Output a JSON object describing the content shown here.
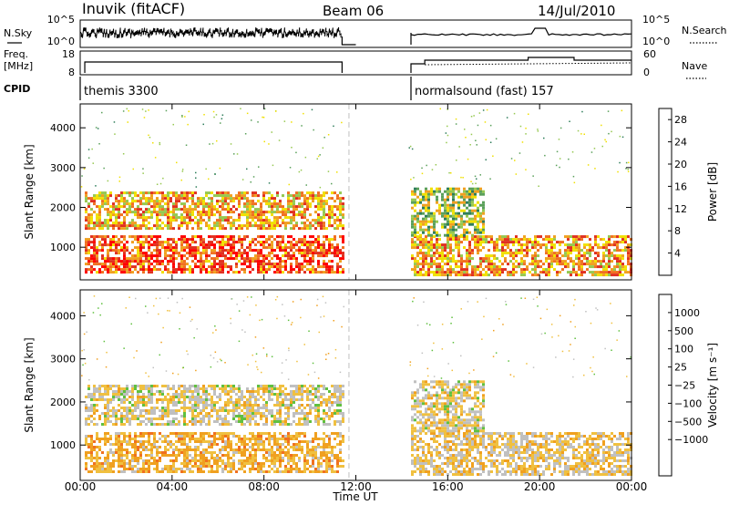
{
  "header": {
    "station": "Inuvik (fitACF)",
    "beam": "Beam 06",
    "date": "14/Jul/2010"
  },
  "strips": {
    "nsky_label": "N.Sky",
    "nsearch_label": "N.Search",
    "nsky_ticks": [
      "10^5",
      "10^0"
    ],
    "nsearch_ticks": [
      "10^5",
      "10^0"
    ],
    "freq_label_1": "Freq.",
    "freq_label_2": "[MHz]",
    "freq_ticks": [
      "18",
      "8"
    ],
    "nave_label": "Nave",
    "nave_ticks": [
      "60",
      "0"
    ],
    "cpid_label": "CPID",
    "cpid_segments": [
      {
        "label": "themis 3300",
        "start_hour": 0.0,
        "end_hour": 11.4
      },
      {
        "label": "normalsound (fast) 157",
        "start_hour": 14.4,
        "end_hour": 24.0
      }
    ]
  },
  "time_axis": {
    "label": "Time UT",
    "ticks": [
      "00:00",
      "04:00",
      "08:00",
      "12:00",
      "16:00",
      "20:00",
      "00:00"
    ],
    "tick_hours": [
      0,
      4,
      8,
      12,
      16,
      20,
      24
    ],
    "range_hours": [
      0,
      24
    ]
  },
  "chart_data": [
    {
      "type": "heatmap",
      "parameter": "Power",
      "ylabel": "Slant Range [km]",
      "yticks": [
        "1000",
        "2000",
        "3000",
        "4000"
      ],
      "ytick_values": [
        1000,
        2000,
        3000,
        4000
      ],
      "ylim": [
        180,
        4600
      ],
      "colorbar_label": "Power [dB]",
      "colorbar_ticks": [
        "4",
        "8",
        "12",
        "16",
        "20",
        "24",
        "28"
      ],
      "colorbar_tick_values": [
        4,
        8,
        12,
        16,
        20,
        24,
        28
      ],
      "colorbar_range": [
        0,
        30
      ],
      "colors": [
        "#1010e0",
        "#2050b0",
        "#2e7d5a",
        "#5aa05a",
        "#96c850",
        "#f0e000",
        "#f0a020",
        "#f07020",
        "#e03020",
        "#ff0000"
      ],
      "echo_bands": [
        {
          "start_hour": 0.2,
          "end_hour": 11.4,
          "range_km": [
            1500,
            2400
          ],
          "level": 19
        },
        {
          "start_hour": 0.2,
          "end_hour": 11.4,
          "range_km": [
            400,
            1300
          ],
          "level": 24
        },
        {
          "start_hour": 14.4,
          "end_hour": 24.0,
          "range_km": [
            300,
            1300
          ],
          "level": 20
        },
        {
          "start_hour": 14.4,
          "end_hour": 17.5,
          "range_km": [
            1300,
            2500
          ],
          "level": 14
        }
      ]
    },
    {
      "type": "heatmap",
      "parameter": "Velocity",
      "ylabel": "Slant Range [km]",
      "yticks": [
        "1000",
        "2000",
        "3000",
        "4000"
      ],
      "ytick_values": [
        1000,
        2000,
        3000,
        4000
      ],
      "ylim": [
        180,
        4600
      ],
      "colorbar_label": "Velocity [m s⁻¹]",
      "colorbar_ticks": [
        "1000",
        "500",
        "100",
        "25",
        "−25",
        "−100",
        "−500",
        "−1000"
      ],
      "colorbar_range": [
        -1000,
        1000
      ],
      "colors": [
        "#ff0000",
        "#e03020",
        "#f07020",
        "#f0a020",
        "#f0c040",
        "#c0c0c0",
        "#60c040",
        "#2e8b57",
        "#2a5aa0",
        "#1010c0"
      ],
      "echo_bands": [
        {
          "start_hour": 0.2,
          "end_hour": 11.4,
          "range_km": [
            1500,
            2400
          ],
          "level": 0
        },
        {
          "start_hour": 0.2,
          "end_hour": 11.4,
          "range_km": [
            400,
            1300
          ],
          "level": -200
        },
        {
          "start_hour": 14.4,
          "end_hour": 24.0,
          "range_km": [
            300,
            1300
          ],
          "level": -60
        },
        {
          "start_hour": 14.4,
          "end_hour": 17.5,
          "range_km": [
            1300,
            2500
          ],
          "level": 0
        }
      ]
    }
  ]
}
